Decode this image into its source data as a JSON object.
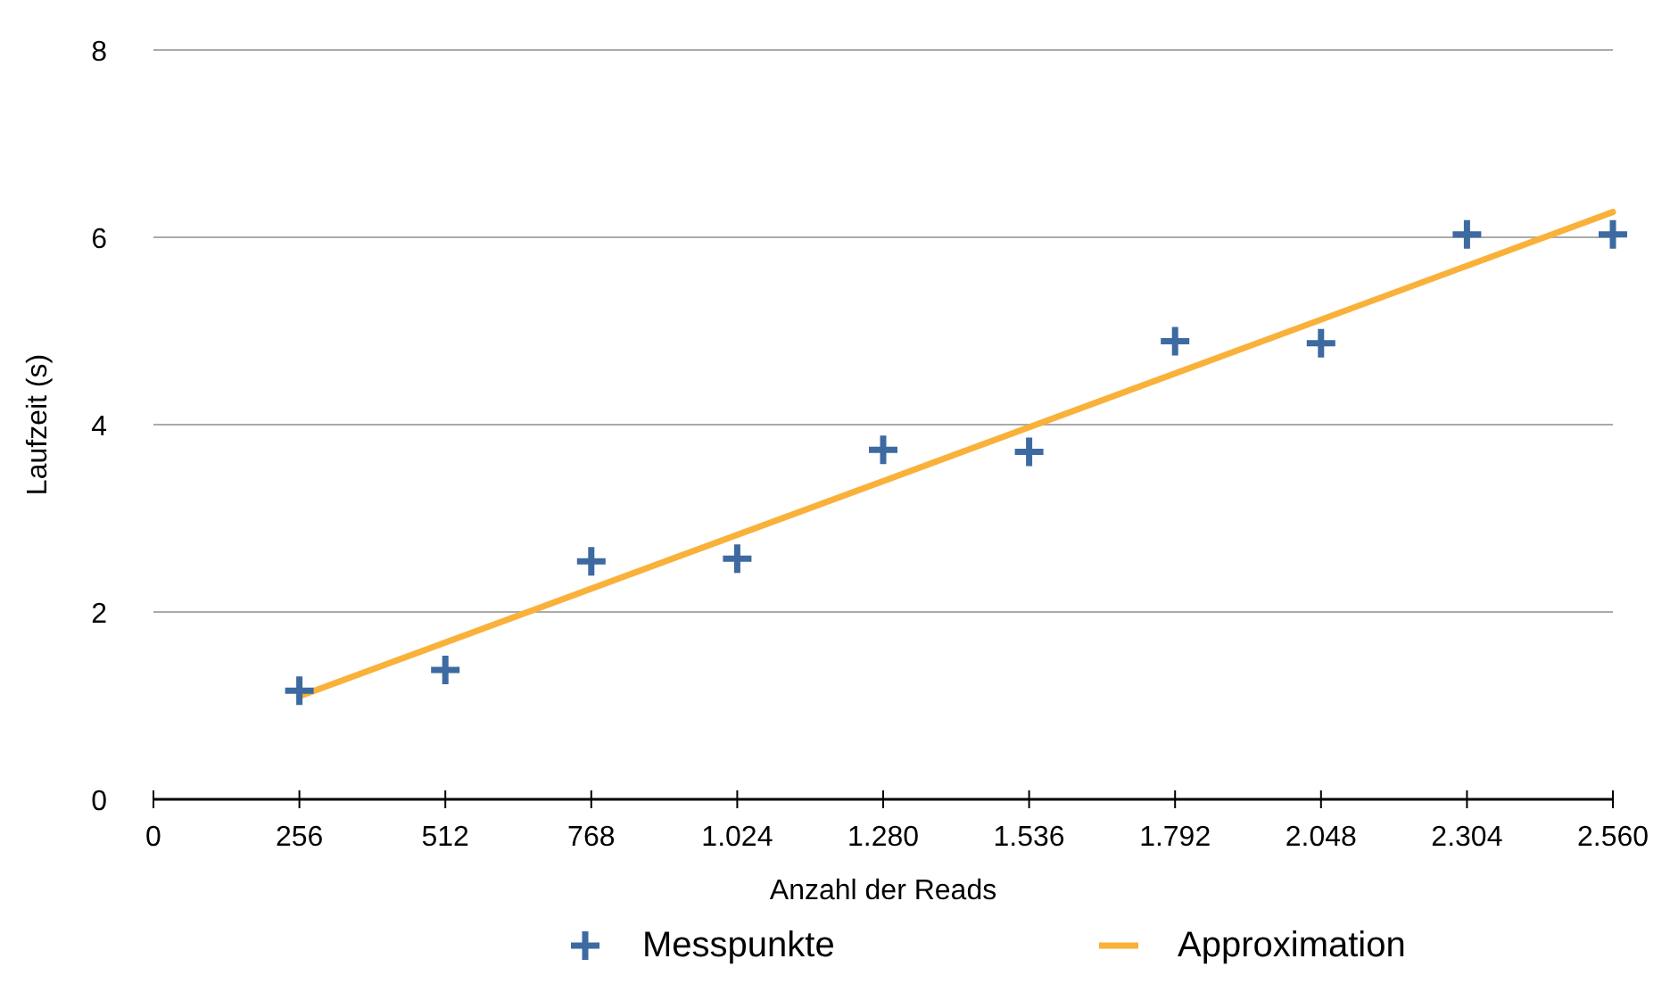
{
  "chart_data": {
    "type": "scatter",
    "xlabel": "Anzahl der Reads",
    "ylabel": "Laufzeit (s)",
    "x": [
      256,
      512,
      768,
      1024,
      1280,
      1536,
      1792,
      2048,
      2304,
      2560
    ],
    "series": [
      {
        "name": "Messpunkte",
        "color": "#3d6aa0",
        "marker": "cross",
        "values": [
          1.16,
          1.38,
          2.54,
          2.57,
          3.73,
          3.71,
          4.89,
          4.87,
          6.03,
          6.03
        ]
      },
      {
        "name": "Approximation",
        "type": "line",
        "color": "#f9b13a",
        "x": [
          256,
          2560
        ],
        "values": [
          1.1,
          6.27
        ]
      }
    ],
    "xlim": [
      0,
      2560
    ],
    "xticks": [
      0,
      {
        "value": 256,
        "label": "256"
      },
      {
        "value": 512,
        "label": "512"
      },
      {
        "value": 768,
        "label": "768"
      },
      {
        "value": 1024,
        "label": "1.024"
      },
      {
        "value": 1280,
        "label": "1.280"
      },
      {
        "value": 1536,
        "label": "1.536"
      },
      {
        "value": 1792,
        "label": "1.792"
      },
      {
        "value": 2048,
        "label": "2.048"
      },
      {
        "value": 2304,
        "label": "2.304"
      },
      {
        "value": 2560,
        "label": "2.560"
      }
    ],
    "ylim": [
      0,
      8
    ],
    "yticks": [
      0,
      2,
      4,
      6,
      8
    ],
    "grid": "y",
    "legend": "bottom"
  }
}
